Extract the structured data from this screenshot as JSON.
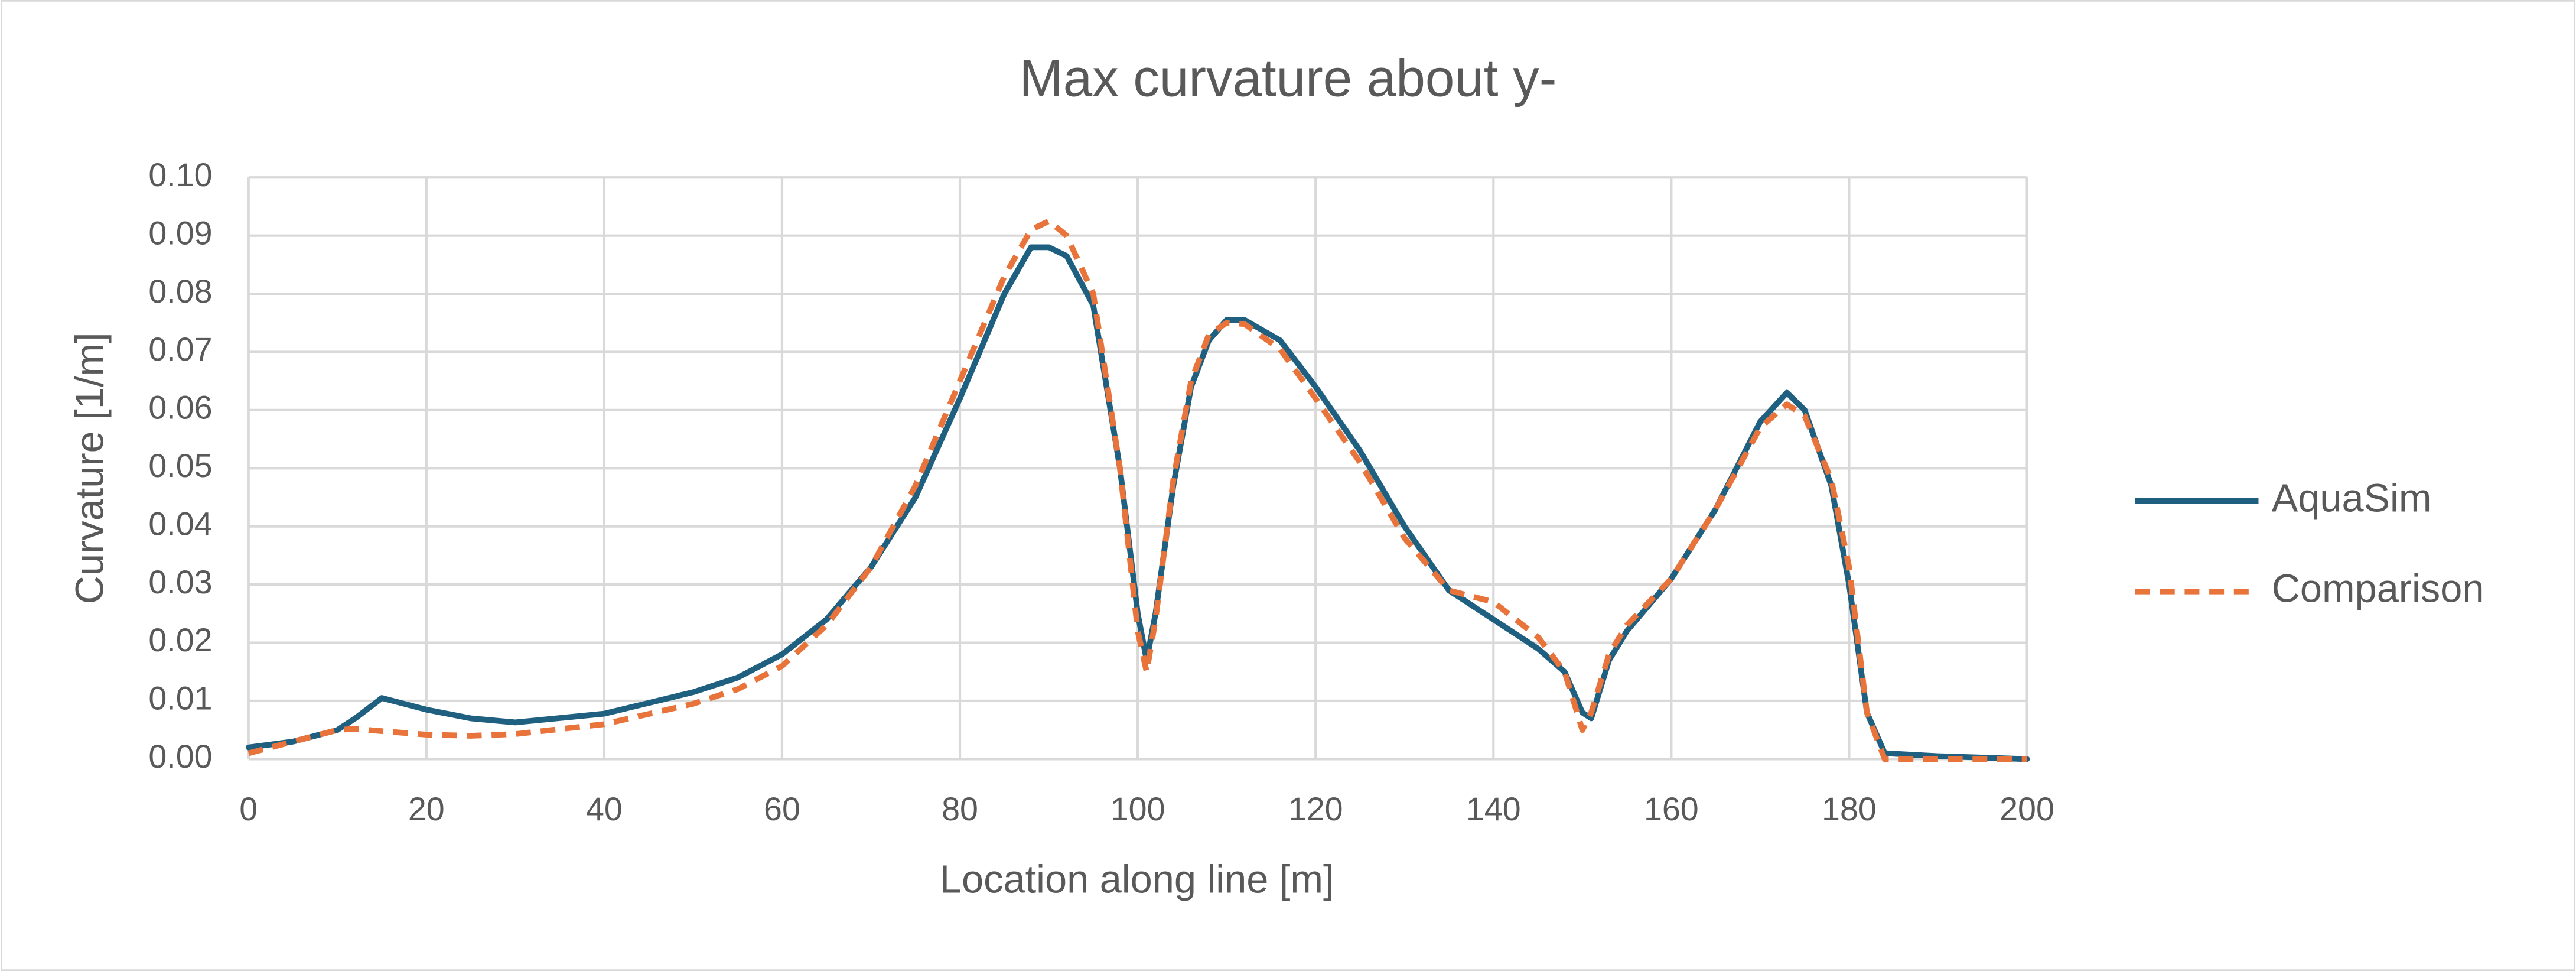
{
  "chart_data": {
    "type": "line",
    "title": "Max curvature about y-",
    "x_label": "Location along line [m]",
    "y_label": "Curvature  [1/m]",
    "x": [
      0,
      5,
      10,
      12,
      15,
      20,
      25,
      30,
      40,
      50,
      55,
      60,
      65,
      70,
      75,
      80,
      85,
      88,
      90,
      92,
      95,
      98,
      100,
      101,
      102,
      104,
      106,
      108,
      110,
      112,
      116,
      120,
      125,
      130,
      135,
      140,
      145,
      148,
      150,
      151,
      153,
      155,
      160,
      165,
      170,
      173,
      175,
      178,
      180,
      182,
      184,
      190,
      200
    ],
    "series": [
      {
        "name": "AquaSim",
        "color": "#1f5f7f",
        "dash": false,
        "values": [
          0.002,
          0.003,
          0.005,
          0.007,
          0.0105,
          0.0085,
          0.007,
          0.0063,
          0.0078,
          0.0115,
          0.014,
          0.018,
          0.024,
          0.033,
          0.045,
          0.062,
          0.08,
          0.088,
          0.088,
          0.0865,
          0.078,
          0.05,
          0.025,
          0.017,
          0.025,
          0.047,
          0.064,
          0.072,
          0.0755,
          0.0755,
          0.072,
          0.064,
          0.053,
          0.04,
          0.029,
          0.024,
          0.019,
          0.015,
          0.008,
          0.007,
          0.017,
          0.022,
          0.031,
          0.043,
          0.058,
          0.063,
          0.06,
          0.047,
          0.03,
          0.008,
          0.001,
          0.0005,
          0
        ]
      },
      {
        "name": "Comparison",
        "color": "#e8743b",
        "dash": true,
        "values": [
          0.001,
          0.003,
          0.005,
          0.0052,
          0.0048,
          0.0042,
          0.004,
          0.0043,
          0.006,
          0.0095,
          0.012,
          0.016,
          0.023,
          0.033,
          0.047,
          0.065,
          0.083,
          0.091,
          0.0925,
          0.09,
          0.08,
          0.05,
          0.022,
          0.015,
          0.024,
          0.048,
          0.065,
          0.073,
          0.075,
          0.0748,
          0.0705,
          0.062,
          0.051,
          0.038,
          0.029,
          0.027,
          0.021,
          0.015,
          0.005,
          0.008,
          0.018,
          0.023,
          0.031,
          0.043,
          0.057,
          0.061,
          0.059,
          0.048,
          0.033,
          0.008,
          0,
          0,
          0
        ]
      }
    ],
    "xlim": [
      0,
      200
    ],
    "xticks": [
      0,
      20,
      40,
      60,
      80,
      100,
      120,
      140,
      160,
      180,
      200
    ],
    "ylim": [
      0,
      0.1
    ],
    "yticks": [
      {
        "value": 0,
        "label": "0.00"
      },
      0.01,
      0.02,
      0.03,
      0.04,
      0.05,
      0.06,
      0.07,
      0.08,
      0.09,
      {
        "value": 0.1,
        "label": "0.10"
      }
    ],
    "grid": true,
    "legend": "right"
  }
}
